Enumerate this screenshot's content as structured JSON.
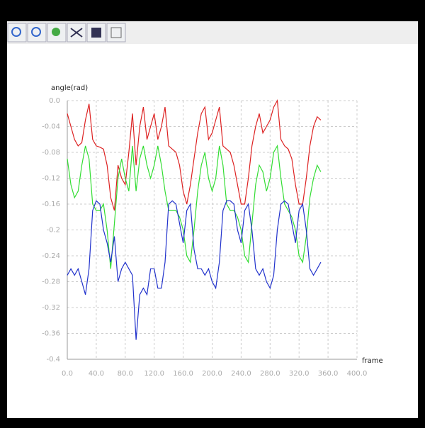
{
  "chart_data": {
    "type": "line",
    "y_label": "angle(rad)",
    "x_label": "frame",
    "x": [
      0,
      5,
      10,
      15,
      20,
      25,
      30,
      35,
      40,
      45,
      50,
      55,
      60,
      65,
      70,
      75,
      80,
      85,
      90,
      95,
      100,
      105,
      110,
      115,
      120,
      125,
      130,
      135,
      140,
      145,
      150,
      155,
      160,
      165,
      170,
      175,
      180,
      185,
      190,
      195,
      200,
      205,
      210,
      215,
      220,
      225,
      230,
      235,
      240,
      245,
      250,
      255,
      260,
      265,
      270,
      275,
      280,
      285,
      290,
      295,
      300,
      305,
      310,
      315,
      320,
      325,
      330,
      335,
      340,
      345,
      350
    ],
    "series": [
      {
        "color": "#dd2222",
        "values": [
          -0.02,
          -0.04,
          -0.06,
          -0.07,
          -0.065,
          -0.03,
          -0.005,
          -0.06,
          -0.07,
          -0.072,
          -0.075,
          -0.1,
          -0.15,
          -0.17,
          -0.1,
          -0.12,
          -0.13,
          -0.08,
          -0.02,
          -0.1,
          -0.04,
          -0.01,
          -0.06,
          -0.04,
          -0.02,
          -0.06,
          -0.04,
          -0.01,
          -0.07,
          -0.075,
          -0.08,
          -0.1,
          -0.14,
          -0.16,
          -0.13,
          -0.09,
          -0.05,
          -0.02,
          -0.01,
          -0.06,
          -0.05,
          -0.03,
          -0.01,
          -0.07,
          -0.075,
          -0.08,
          -0.1,
          -0.13,
          -0.16,
          -0.16,
          -0.12,
          -0.07,
          -0.04,
          -0.02,
          -0.05,
          -0.04,
          -0.03,
          -0.01,
          0.0,
          -0.06,
          -0.07,
          -0.075,
          -0.09,
          -0.13,
          -0.16,
          -0.16,
          -0.12,
          -0.07,
          -0.04,
          -0.025,
          -0.03
        ]
      },
      {
        "color": "#33dd33",
        "values": [
          -0.09,
          -0.13,
          -0.15,
          -0.14,
          -0.1,
          -0.07,
          -0.09,
          -0.16,
          -0.17,
          -0.17,
          -0.16,
          -0.2,
          -0.26,
          -0.19,
          -0.12,
          -0.09,
          -0.12,
          -0.14,
          -0.07,
          -0.14,
          -0.09,
          -0.07,
          -0.1,
          -0.12,
          -0.1,
          -0.07,
          -0.1,
          -0.14,
          -0.17,
          -0.17,
          -0.17,
          -0.18,
          -0.2,
          -0.24,
          -0.25,
          -0.2,
          -0.14,
          -0.1,
          -0.08,
          -0.12,
          -0.14,
          -0.12,
          -0.07,
          -0.1,
          -0.16,
          -0.17,
          -0.17,
          -0.18,
          -0.2,
          -0.24,
          -0.25,
          -0.19,
          -0.13,
          -0.1,
          -0.11,
          -0.14,
          -0.12,
          -0.08,
          -0.07,
          -0.12,
          -0.16,
          -0.17,
          -0.18,
          -0.2,
          -0.24,
          -0.25,
          -0.21,
          -0.15,
          -0.12,
          -0.1,
          -0.11
        ]
      },
      {
        "color": "#2233cc",
        "values": [
          -0.27,
          -0.26,
          -0.27,
          -0.26,
          -0.28,
          -0.3,
          -0.26,
          -0.17,
          -0.155,
          -0.16,
          -0.2,
          -0.22,
          -0.25,
          -0.21,
          -0.28,
          -0.26,
          -0.25,
          -0.26,
          -0.27,
          -0.37,
          -0.3,
          -0.29,
          -0.3,
          -0.26,
          -0.26,
          -0.29,
          -0.29,
          -0.25,
          -0.16,
          -0.155,
          -0.16,
          -0.19,
          -0.22,
          -0.17,
          -0.16,
          -0.23,
          -0.26,
          -0.26,
          -0.27,
          -0.26,
          -0.28,
          -0.29,
          -0.25,
          -0.17,
          -0.155,
          -0.155,
          -0.16,
          -0.2,
          -0.22,
          -0.17,
          -0.16,
          -0.2,
          -0.26,
          -0.27,
          -0.26,
          -0.28,
          -0.29,
          -0.27,
          -0.2,
          -0.16,
          -0.155,
          -0.16,
          -0.19,
          -0.22,
          -0.17,
          -0.16,
          -0.2,
          -0.26,
          -0.27,
          -0.26,
          -0.25
        ]
      }
    ],
    "xlim": [
      0,
      400
    ],
    "xticks": [
      {
        "value": 0,
        "label": "0.0"
      },
      {
        "value": 40,
        "label": "40.0"
      },
      {
        "value": 80,
        "label": "80.0"
      },
      {
        "value": 120,
        "label": "120.0"
      },
      {
        "value": 160,
        "label": "160.0"
      },
      {
        "value": 200,
        "label": "200.0"
      },
      {
        "value": 240,
        "label": "240.0"
      },
      {
        "value": 280,
        "label": "280.0"
      },
      {
        "value": 320,
        "label": "320.0"
      },
      {
        "value": 360,
        "label": "360.0"
      },
      {
        "value": 400,
        "label": "400.0"
      }
    ],
    "ylim": [
      -0.4,
      0
    ],
    "yticks": [
      {
        "value": 0,
        "label": "0.0"
      },
      -0.04,
      -0.08,
      -0.12,
      -0.16,
      -0.2,
      -0.24,
      -0.28,
      -0.32,
      -0.36,
      -0.4
    ],
    "grid": true
  }
}
